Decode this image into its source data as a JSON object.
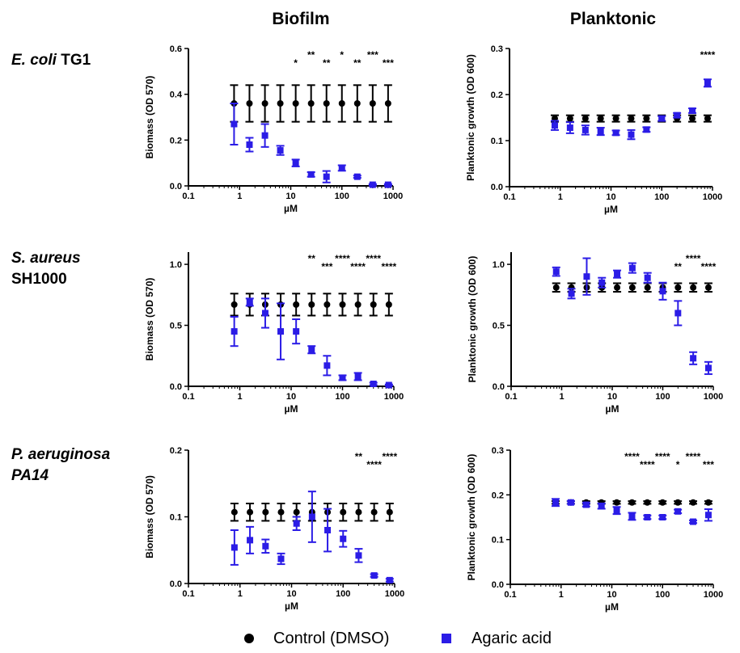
{
  "columns": [
    "Biofilm",
    "Planktonic"
  ],
  "rows": [
    {
      "name_italic": "E. coli",
      "name_rest": " TG1",
      "line2": ""
    },
    {
      "name_italic": "S. aureus",
      "name_rest": "",
      "line2": "SH1000"
    },
    {
      "name_italic": "P. aeruginosa",
      "name_rest": "",
      "line2": "PA14",
      "line2_italic": true
    }
  ],
  "legend": {
    "control": "Control (DMSO)",
    "agaric": "Agaric acid"
  },
  "colors": {
    "control": "#000000",
    "agaric": "#2b1ce6"
  },
  "chart_data": [
    {
      "type": "scatter",
      "panel": "E. coli TG1 - Biofilm",
      "xlabel": "µM",
      "ylabel": "Biomass (OD 570)",
      "xscale": "log",
      "xlim": [
        0.1,
        1000
      ],
      "ylim": [
        0,
        0.6
      ],
      "xticks": [
        "0.1",
        "1",
        "10",
        "100",
        "1000"
      ],
      "yticks": [
        "0.0",
        "0.2",
        "0.4",
        "0.6"
      ],
      "x": [
        0.78,
        1.56,
        3.13,
        6.25,
        12.5,
        25,
        50,
        100,
        200,
        400,
        800
      ],
      "series": [
        {
          "name": "Control (DMSO)",
          "values": [
            0.36,
            0.36,
            0.36,
            0.36,
            0.36,
            0.36,
            0.36,
            0.36,
            0.36,
            0.36,
            0.36
          ],
          "err": [
            0.08,
            0.08,
            0.08,
            0.08,
            0.08,
            0.08,
            0.08,
            0.08,
            0.08,
            0.08,
            0.08
          ]
        },
        {
          "name": "Agaric acid",
          "values": [
            0.27,
            0.18,
            0.22,
            0.155,
            0.1,
            0.05,
            0.04,
            0.078,
            0.04,
            0.005,
            0.005
          ],
          "err": [
            0.09,
            0.03,
            0.05,
            0.02,
            0.015,
            0.01,
            0.025,
            0.012,
            0.005,
            0.003,
            0.003
          ]
        }
      ],
      "annotations": [
        {
          "x": 12.5,
          "row": 2,
          "text": "*"
        },
        {
          "x": 25,
          "row": 1,
          "text": "**"
        },
        {
          "x": 50,
          "row": 2,
          "text": "**"
        },
        {
          "x": 100,
          "row": 1,
          "text": "*"
        },
        {
          "x": 200,
          "row": 2,
          "text": "**"
        },
        {
          "x": 400,
          "row": 1,
          "text": "***"
        },
        {
          "x": 800,
          "row": 2,
          "text": "***"
        }
      ]
    },
    {
      "type": "scatter",
      "panel": "E. coli TG1 - Planktonic",
      "xlabel": "µM",
      "ylabel": "Planktonic growth (OD 600)",
      "xscale": "log",
      "xlim": [
        0.1,
        1000
      ],
      "ylim": [
        0,
        0.3
      ],
      "xticks": [
        "0.1",
        "1",
        "10",
        "100",
        "1000"
      ],
      "yticks": [
        "0.0",
        "0.1",
        "0.2",
        "0.3"
      ],
      "x": [
        0.78,
        1.56,
        3.13,
        6.25,
        12.5,
        25,
        50,
        100,
        200,
        400,
        800
      ],
      "series": [
        {
          "name": "Control (DMSO)",
          "values": [
            0.148,
            0.148,
            0.148,
            0.148,
            0.148,
            0.148,
            0.148,
            0.148,
            0.148,
            0.148,
            0.148
          ],
          "err": [
            0.007,
            0.007,
            0.007,
            0.007,
            0.007,
            0.007,
            0.007,
            0.007,
            0.007,
            0.007,
            0.007
          ]
        },
        {
          "name": "Agaric acid",
          "values": [
            0.133,
            0.128,
            0.123,
            0.12,
            0.117,
            0.113,
            0.124,
            0.148,
            0.155,
            0.165,
            0.225
          ],
          "err": [
            0.01,
            0.012,
            0.01,
            0.008,
            0.005,
            0.01,
            0.005,
            0.005,
            0.005,
            0.005,
            0.008
          ]
        }
      ],
      "annotations": [
        {
          "x": 800,
          "row": 1,
          "text": "****"
        }
      ]
    },
    {
      "type": "scatter",
      "panel": "S. aureus SH1000 - Biofilm",
      "xlabel": "µM",
      "ylabel": "Biomass (OD 570)",
      "xscale": "log",
      "xlim": [
        0.1,
        1000
      ],
      "ylim": [
        0,
        1.1
      ],
      "xticks": [
        "0.1",
        "1",
        "10",
        "100",
        "1000"
      ],
      "yticks": [
        "0.0",
        "0.5",
        "1.0"
      ],
      "x": [
        0.78,
        1.56,
        3.13,
        6.25,
        12.5,
        25,
        50,
        100,
        200,
        400,
        800
      ],
      "series": [
        {
          "name": "Control (DMSO)",
          "values": [
            0.67,
            0.67,
            0.67,
            0.67,
            0.67,
            0.67,
            0.67,
            0.67,
            0.67,
            0.67,
            0.67
          ],
          "err": [
            0.09,
            0.09,
            0.09,
            0.09,
            0.09,
            0.09,
            0.09,
            0.09,
            0.09,
            0.09,
            0.09
          ]
        },
        {
          "name": "Agaric acid",
          "values": [
            0.45,
            0.69,
            0.6,
            0.45,
            0.45,
            0.3,
            0.17,
            0.07,
            0.08,
            0.02,
            0.01
          ],
          "err": [
            0.12,
            0.03,
            0.12,
            0.23,
            0.1,
            0.03,
            0.08,
            0.02,
            0.03,
            0.01,
            0.005
          ]
        }
      ],
      "annotations": [
        {
          "x": 25,
          "row": 1,
          "text": "**"
        },
        {
          "x": 50,
          "row": 2,
          "text": "***"
        },
        {
          "x": 100,
          "row": 1,
          "text": "****"
        },
        {
          "x": 200,
          "row": 2,
          "text": "****"
        },
        {
          "x": 400,
          "row": 1,
          "text": "****"
        },
        {
          "x": 800,
          "row": 2,
          "text": "****"
        }
      ]
    },
    {
      "type": "scatter",
      "panel": "S. aureus SH1000 - Planktonic",
      "xlabel": "µM",
      "ylabel": "Planktonic growth (OD 600)",
      "xscale": "log",
      "xlim": [
        0.1,
        1000
      ],
      "ylim": [
        0,
        1.1
      ],
      "xticks": [
        "0.1",
        "1",
        "10",
        "100",
        "1000"
      ],
      "yticks": [
        "0.0",
        "0.5",
        "1.0"
      ],
      "x": [
        0.78,
        1.56,
        3.13,
        6.25,
        12.5,
        25,
        50,
        100,
        200,
        400,
        800
      ],
      "series": [
        {
          "name": "Control (DMSO)",
          "values": [
            0.81,
            0.81,
            0.81,
            0.81,
            0.81,
            0.81,
            0.81,
            0.81,
            0.81,
            0.81,
            0.81
          ],
          "err": [
            0.035,
            0.035,
            0.035,
            0.035,
            0.035,
            0.035,
            0.035,
            0.035,
            0.035,
            0.035,
            0.035
          ]
        },
        {
          "name": "Agaric acid",
          "values": [
            0.94,
            0.76,
            0.9,
            0.85,
            0.92,
            0.97,
            0.89,
            0.78,
            0.6,
            0.23,
            0.15
          ],
          "err": [
            0.035,
            0.04,
            0.15,
            0.04,
            0.03,
            0.04,
            0.04,
            0.07,
            0.1,
            0.05,
            0.05
          ]
        }
      ],
      "annotations": [
        {
          "x": 200,
          "row": 2,
          "text": "**"
        },
        {
          "x": 400,
          "row": 1,
          "text": "****"
        },
        {
          "x": 800,
          "row": 2,
          "text": "****"
        }
      ]
    },
    {
      "type": "scatter",
      "panel": "P. aeruginosa PA14 - Biofilm",
      "xlabel": "µM",
      "ylabel": "Biomass (OD 570)",
      "xscale": "log",
      "xlim": [
        0.1,
        1000
      ],
      "ylim": [
        0,
        0.2
      ],
      "xticks": [
        "0.1",
        "1",
        "10",
        "100",
        "1000"
      ],
      "yticks": [
        "0.0",
        "0.1",
        "0.2"
      ],
      "x": [
        0.78,
        1.56,
        3.13,
        6.25,
        12.5,
        25,
        50,
        100,
        200,
        400,
        800
      ],
      "series": [
        {
          "name": "Control (DMSO)",
          "values": [
            0.107,
            0.107,
            0.107,
            0.107,
            0.107,
            0.107,
            0.107,
            0.107,
            0.107,
            0.107,
            0.107
          ],
          "err": [
            0.013,
            0.013,
            0.013,
            0.013,
            0.013,
            0.013,
            0.013,
            0.013,
            0.013,
            0.013,
            0.013
          ]
        },
        {
          "name": "Agaric acid",
          "values": [
            0.054,
            0.065,
            0.056,
            0.037,
            0.09,
            0.1,
            0.08,
            0.067,
            0.042,
            0.012,
            0.005
          ],
          "err": [
            0.026,
            0.02,
            0.01,
            0.008,
            0.01,
            0.038,
            0.032,
            0.012,
            0.01,
            0.002,
            0.002
          ]
        }
      ],
      "annotations": [
        {
          "x": 200,
          "row": 1,
          "text": "**"
        },
        {
          "x": 400,
          "row": 2,
          "text": "****"
        },
        {
          "x": 800,
          "row": 1,
          "text": "****"
        }
      ]
    },
    {
      "type": "scatter",
      "panel": "P. aeruginosa PA14 - Planktonic",
      "xlabel": "µM",
      "ylabel": "Planktonic growth (OD 600)",
      "xscale": "log",
      "xlim": [
        0.1,
        1000
      ],
      "ylim": [
        0,
        0.3
      ],
      "xticks": [
        "0.1",
        "1",
        "10",
        "100",
        "1000"
      ],
      "yticks": [
        "0.0",
        "0.1",
        "0.2",
        "0.3"
      ],
      "x": [
        0.78,
        1.56,
        3.13,
        6.25,
        12.5,
        25,
        50,
        100,
        200,
        400,
        800
      ],
      "series": [
        {
          "name": "Control (DMSO)",
          "values": [
            0.183,
            0.183,
            0.183,
            0.183,
            0.183,
            0.183,
            0.183,
            0.183,
            0.183,
            0.183,
            0.183
          ],
          "err": [
            0.003,
            0.003,
            0.003,
            0.003,
            0.003,
            0.003,
            0.003,
            0.003,
            0.003,
            0.003,
            0.003
          ]
        },
        {
          "name": "Agaric acid",
          "values": [
            0.183,
            0.183,
            0.178,
            0.175,
            0.165,
            0.152,
            0.15,
            0.15,
            0.163,
            0.14,
            0.155
          ],
          "err": [
            0.008,
            0.003,
            0.004,
            0.006,
            0.008,
            0.008,
            0.004,
            0.004,
            0.004,
            0.003,
            0.013
          ]
        }
      ],
      "annotations": [
        {
          "x": 25,
          "row": 1,
          "text": "****"
        },
        {
          "x": 50,
          "row": 2,
          "text": "****"
        },
        {
          "x": 100,
          "row": 1,
          "text": "****"
        },
        {
          "x": 200,
          "row": 2,
          "text": "*"
        },
        {
          "x": 400,
          "row": 1,
          "text": "****"
        },
        {
          "x": 800,
          "row": 2,
          "text": "***"
        }
      ]
    }
  ]
}
